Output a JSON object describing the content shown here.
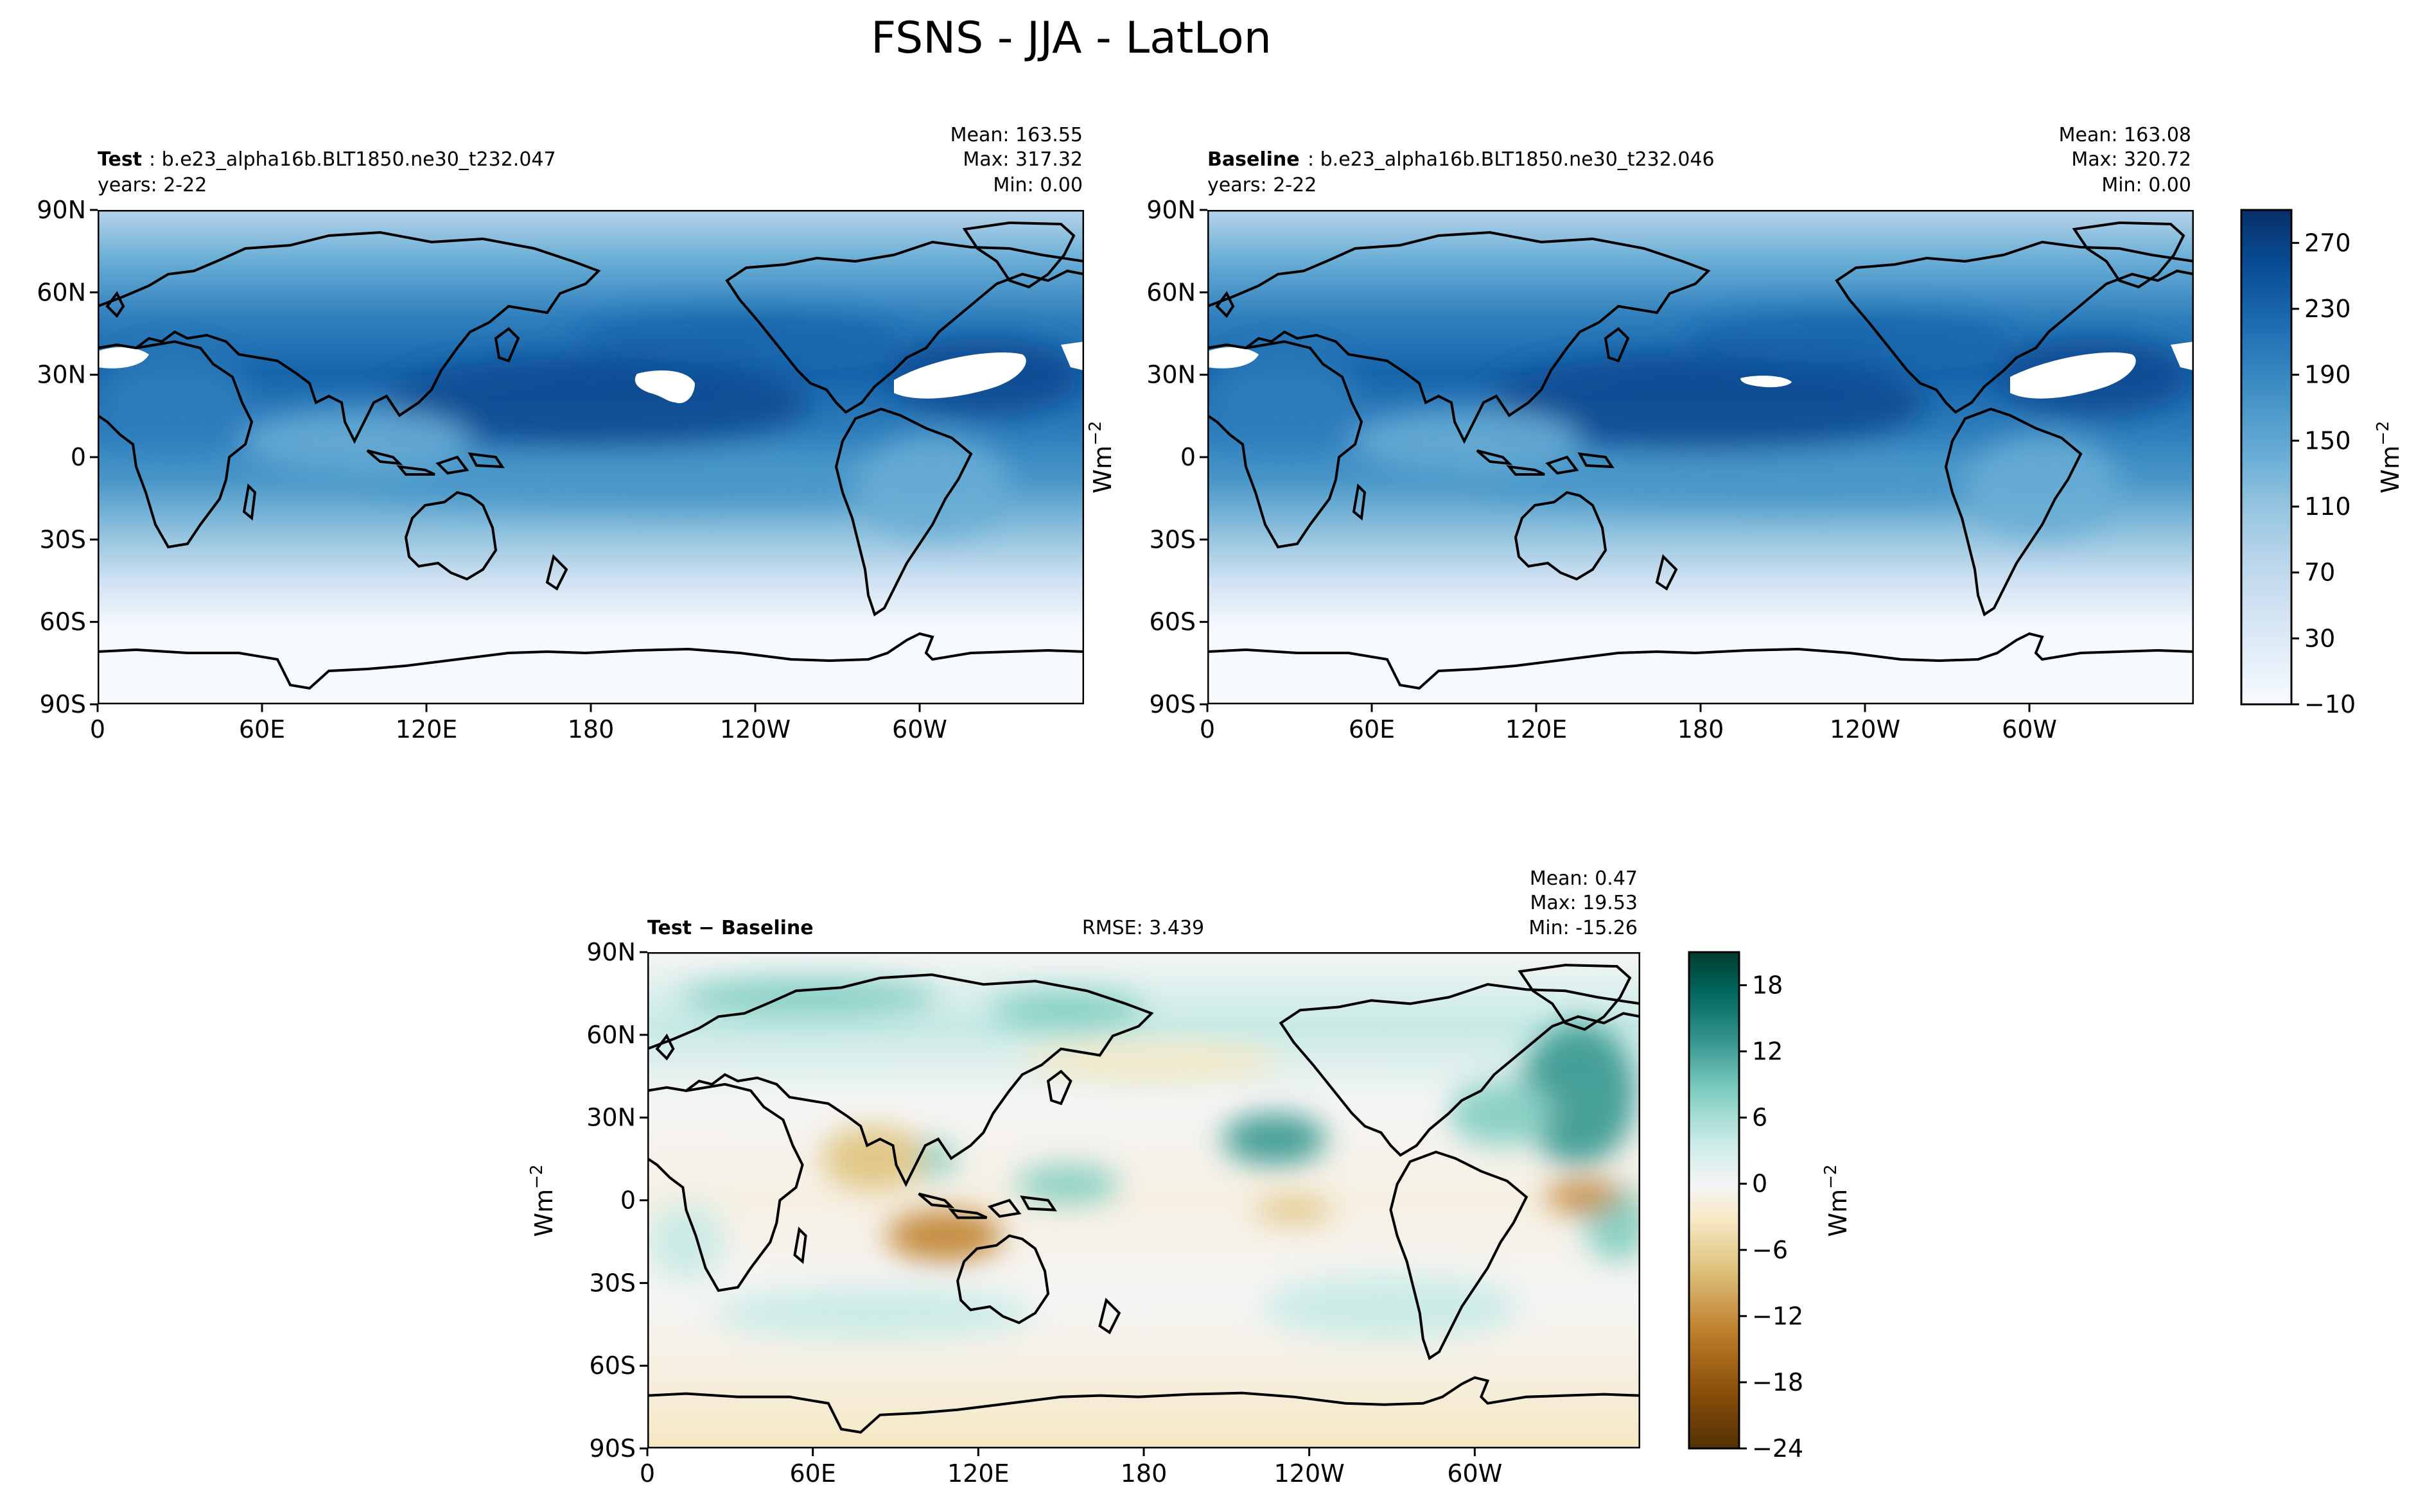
{
  "figure_title": "FSNS - JJA - LatLon",
  "colors": {
    "blues": [
      "#f7fbff",
      "#e3eef9",
      "#d0e1f2",
      "#b7d4ea",
      "#94c4df",
      "#6aaed6",
      "#4a98c9",
      "#2e7ebc",
      "#1764ab",
      "#084a91",
      "#08306b"
    ],
    "brbg": [
      "#543005",
      "#8c510a",
      "#bf812d",
      "#dfc27d",
      "#f6e8c3",
      "#f5f5f5",
      "#c7eae5",
      "#80cdc1",
      "#35978f",
      "#01665e",
      "#003c30"
    ]
  },
  "chart_data": [
    {
      "type": "heatmap",
      "name": "test",
      "label_bold": "Test",
      "label_rest": ": b.e23_alpha16b.BLT1850.ne30_t232.047",
      "years": "years: 2-22",
      "stats": [
        "Mean: 163.55",
        "Max: 317.32",
        "Min:  0.00"
      ],
      "ylabel": "Wm",
      "ylabel_sup": "−2",
      "xticks": [
        "0",
        "60E",
        "120E",
        "180",
        "120W",
        "60W"
      ],
      "yticks": [
        "90N",
        "60N",
        "30N",
        "0",
        "30S",
        "60S",
        "90S"
      ],
      "xlim": [
        0,
        360
      ],
      "ylim": [
        -90,
        90
      ]
    },
    {
      "type": "heatmap",
      "name": "baseline",
      "label_bold": "Baseline",
      "label_rest": ": b.e23_alpha16b.BLT1850.ne30_t232.046",
      "years": "years: 2-22",
      "stats": [
        "Mean: 163.08",
        "Max: 320.72",
        "Min:  0.00"
      ],
      "xticks": [
        "0",
        "60E",
        "120E",
        "180",
        "120W",
        "60W"
      ],
      "yticks": [
        "90N",
        "60N",
        "30N",
        "0",
        "30S",
        "60S",
        "90S"
      ],
      "xlim": [
        0,
        360
      ],
      "ylim": [
        -90,
        90
      ],
      "colorbar": {
        "label": "Wm",
        "label_sup": "−2",
        "ticks": [
          "270",
          "230",
          "190",
          "150",
          "110",
          "70",
          "30",
          "−10"
        ],
        "range": [
          -10,
          290
        ]
      }
    },
    {
      "type": "heatmap",
      "name": "difference",
      "label": "Test − Baseline",
      "rmse": "RMSE: 3.439",
      "stats": [
        "Mean:  0.47",
        "Max: 19.53",
        "Min: -15.26"
      ],
      "ylabel": "Wm",
      "ylabel_sup": "−2",
      "xticks": [
        "0",
        "60E",
        "120E",
        "180",
        "120W",
        "60W"
      ],
      "yticks": [
        "90N",
        "60N",
        "30N",
        "0",
        "30S",
        "60S",
        "90S"
      ],
      "xlim": [
        0,
        360
      ],
      "ylim": [
        -90,
        90
      ],
      "colorbar": {
        "label": "Wm",
        "label_sup": "−2",
        "ticks": [
          "18",
          "12",
          "6",
          "0",
          "−6",
          "−12",
          "−18",
          "−24"
        ],
        "range": [
          -24,
          21
        ]
      }
    }
  ]
}
